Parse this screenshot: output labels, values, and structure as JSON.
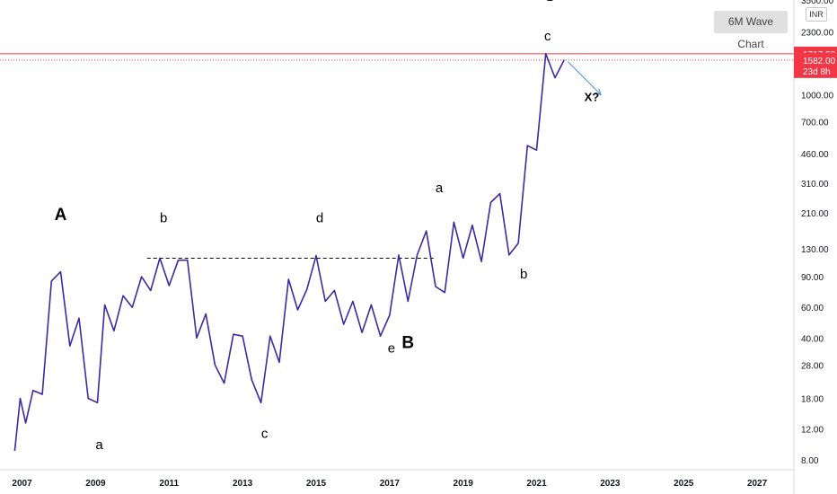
{
  "badge": {
    "label": "6M Wave Chart"
  },
  "currency": "INR",
  "price_tags": {
    "upper": "1717.20",
    "current": "1582.00",
    "timer": "23d 8h"
  },
  "colors": {
    "line": "#3b2aa0",
    "tag": "#f23645",
    "guide": "#f23645",
    "arrow": "#4a90d9"
  },
  "chart_data": {
    "type": "line",
    "y_scale": "log",
    "ylim": [
      7,
      3500
    ],
    "xlim": [
      2006.4,
      2028.0
    ],
    "y_ticks": [
      "3500.00",
      "2300.00",
      "1000.00",
      "700.00",
      "460.00",
      "310.00",
      "210.00",
      "130.00",
      "90.00",
      "60.00",
      "40.00",
      "28.00",
      "18.00",
      "12.00",
      "8.00"
    ],
    "y_tick_values": [
      3500,
      2300,
      1000,
      700,
      460,
      310,
      210,
      130,
      90,
      60,
      40,
      28,
      18,
      12,
      8
    ],
    "x_ticks": [
      "2007",
      "2009",
      "2011",
      "2013",
      "2015",
      "2017",
      "2019",
      "2021",
      "2023",
      "2025",
      "2027"
    ],
    "x_tick_values": [
      2007,
      2009,
      2011,
      2013,
      2015,
      2017,
      2019,
      2021,
      2023,
      2025,
      2027
    ],
    "x": [
      2006.8,
      2006.95,
      2007.1,
      2007.3,
      2007.55,
      2007.8,
      2008.05,
      2008.3,
      2008.55,
      2008.8,
      2009.05,
      2009.25,
      2009.5,
      2009.75,
      2010.0,
      2010.25,
      2010.5,
      2010.75,
      2011.0,
      2011.25,
      2011.5,
      2011.75,
      2012.0,
      2012.25,
      2012.5,
      2012.75,
      2013.0,
      2013.25,
      2013.5,
      2013.75,
      2014.0,
      2014.25,
      2014.5,
      2014.75,
      2015.0,
      2015.25,
      2015.5,
      2015.75,
      2016.0,
      2016.25,
      2016.5,
      2016.75,
      2017.0,
      2017.25,
      2017.5,
      2017.75,
      2018.0,
      2018.25,
      2018.5,
      2018.75,
      2019.0,
      2019.25,
      2019.5,
      2019.75,
      2020.0,
      2020.25,
      2020.5,
      2020.75,
      2021.0,
      2021.25,
      2021.5,
      2021.75
    ],
    "values": [
      9,
      18,
      13,
      20,
      19,
      85,
      96,
      36,
      52,
      18,
      17,
      62,
      44,
      70,
      60,
      90,
      75,
      115,
      80,
      112,
      112,
      40,
      55,
      28,
      22,
      42,
      41,
      23,
      17,
      41,
      29,
      87,
      58,
      76,
      119,
      65,
      75,
      48,
      65,
      43,
      62,
      41,
      54,
      120,
      65,
      120,
      165,
      79,
      73,
      185,
      115,
      178,
      110,
      240,
      270,
      120,
      140,
      510,
      480,
      1720,
      1250,
      1582
    ],
    "annotations": [
      {
        "text": "A",
        "x": 2008.05,
        "y": 190,
        "size": "big"
      },
      {
        "text": "a",
        "x": 2009.1,
        "y": 9.2,
        "size": "small"
      },
      {
        "text": "b",
        "x": 2010.85,
        "y": 185,
        "size": "small"
      },
      {
        "text": "c",
        "x": 2013.6,
        "y": 10.7,
        "size": "small"
      },
      {
        "text": "d",
        "x": 2015.1,
        "y": 185,
        "size": "small"
      },
      {
        "text": "e",
        "x": 2017.05,
        "y": 33,
        "size": "small"
      },
      {
        "text": "B",
        "x": 2017.5,
        "y": 35,
        "size": "big"
      },
      {
        "text": "a",
        "x": 2018.35,
        "y": 275,
        "size": "small"
      },
      {
        "text": "b",
        "x": 2020.65,
        "y": 88,
        "size": "small"
      },
      {
        "text": "C",
        "x": 2021.35,
        "y": 3450,
        "size": "big"
      },
      {
        "text": "c",
        "x": 2021.3,
        "y": 2050,
        "size": "small"
      },
      {
        "text": "X?",
        "x": 2022.5,
        "y": 920,
        "size": "x"
      }
    ],
    "hline": {
      "value": 1717.2
    },
    "current_value": 1582,
    "trendline": {
      "x1": 2010.4,
      "x2": 2018.2,
      "y": 115
    },
    "arrow": {
      "x1": 2021.85,
      "y1": 1550,
      "x2": 2022.75,
      "y2": 1000
    }
  }
}
